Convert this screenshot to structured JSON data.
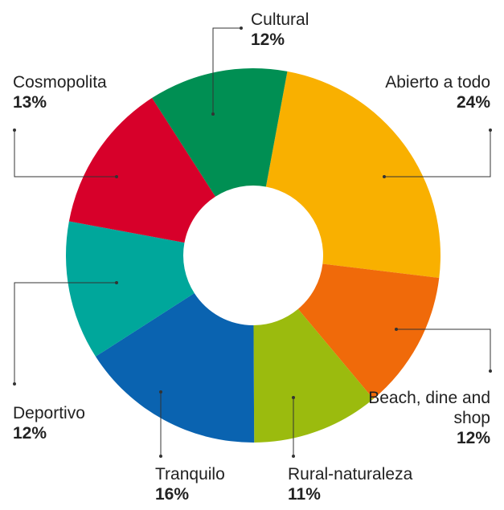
{
  "chart_data": {
    "type": "donut",
    "categories": [
      "Abierto a todo",
      "Beach, dine and shop",
      "Rural-naturaleza",
      "Tranquilo",
      "Deportivo",
      "Cosmopolita",
      "Cultural"
    ],
    "values": [
      24,
      12,
      11,
      16,
      12,
      13,
      12
    ],
    "value_labels": [
      "24%",
      "12%",
      "11%",
      "16%",
      "12%",
      "13%",
      "12%"
    ],
    "colors": [
      "#f9b000",
      "#f06a0a",
      "#9bbb0e",
      "#0a63b0",
      "#00a79b",
      "#d7002a",
      "#008f53"
    ]
  }
}
